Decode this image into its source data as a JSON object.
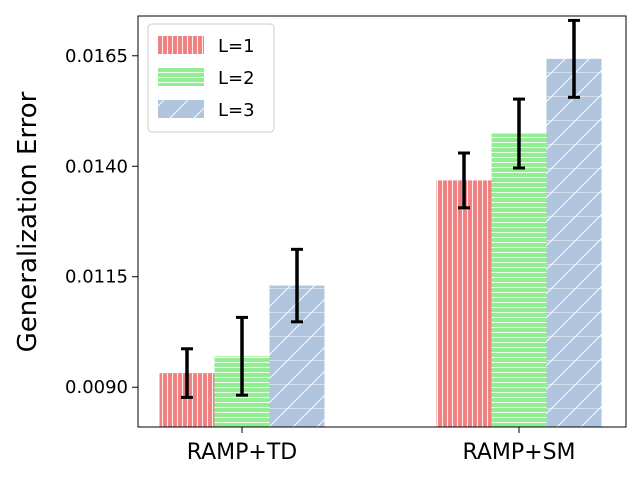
{
  "chart_data": {
    "type": "bar",
    "title": "",
    "xlabel": "",
    "ylabel": "Generalization Error",
    "categories": [
      "RAMP+TD",
      "RAMP+SM"
    ],
    "ylim": [
      0.0081,
      0.0174
    ],
    "yticks": [
      0.009,
      0.0115,
      0.014,
      0.0165
    ],
    "ytick_labels": [
      "0.0090",
      "0.0115",
      "0.0140",
      "0.0165"
    ],
    "grid": false,
    "legend_position": "top-left",
    "series": [
      {
        "name": "L=1",
        "color": "#f08080",
        "hatch": "vertical",
        "values": [
          0.00932,
          0.01368
        ],
        "errors": [
          0.00055,
          0.00062
        ]
      },
      {
        "name": "L=2",
        "color": "#90ee90",
        "hatch": "horizontal",
        "values": [
          0.0097,
          0.01474
        ],
        "errors": [
          0.00088,
          0.00078
        ]
      },
      {
        "name": "L=3",
        "color": "#b0c4de",
        "hatch": "diagonal",
        "values": [
          0.0113,
          0.01643
        ],
        "errors": [
          0.00082,
          0.00087
        ]
      }
    ]
  }
}
